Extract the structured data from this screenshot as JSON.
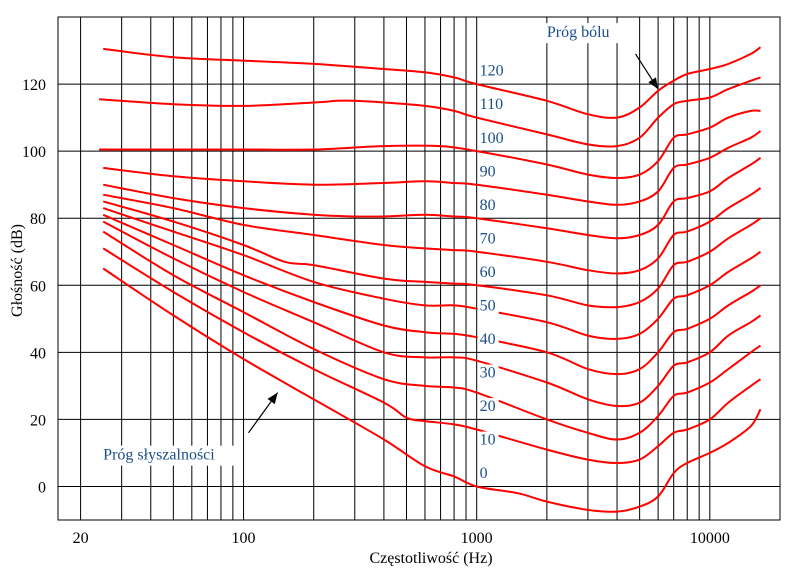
{
  "chart_data": {
    "type": "line",
    "title": "",
    "xlabel": "Częstotliwość (Hz)",
    "ylabel": "Głośność (dB)",
    "x_scale": "log",
    "xlim": [
      16,
      20000
    ],
    "ylim": [
      -10,
      140
    ],
    "x_ticks": [
      {
        "value": 20,
        "label": "20"
      },
      {
        "value": 100,
        "label": "100"
      },
      {
        "value": 1000,
        "label": "1000"
      },
      {
        "value": 10000,
        "label": "10000"
      }
    ],
    "x_grid": [
      20,
      30,
      40,
      50,
      60,
      70,
      80,
      90,
      100,
      200,
      300,
      400,
      500,
      600,
      700,
      800,
      900,
      1000,
      2000,
      3000,
      4000,
      5000,
      6000,
      7000,
      8000,
      9000,
      10000
    ],
    "y_ticks": [
      0,
      20,
      40,
      60,
      80,
      100,
      120
    ],
    "grid": true,
    "series_color": "#ff0000",
    "label_color": "#1a4f8a",
    "series": [
      {
        "name": "0",
        "label_at": [
          1000,
          2.5
        ],
        "x": [
          25,
          50,
          100,
          200,
          400,
          600,
          800,
          1000,
          1500,
          2000,
          3000,
          4000,
          5000,
          6000,
          7000,
          8000,
          10000,
          12000,
          15000,
          16500
        ],
        "y": [
          65,
          51,
          38,
          26,
          14,
          6,
          3,
          0,
          -2,
          -4.5,
          -7,
          -7.5,
          -6,
          -3,
          4,
          7,
          10,
          13,
          18,
          23
        ]
      },
      {
        "name": "10",
        "label_at": [
          1000,
          12.5
        ],
        "x": [
          25,
          50,
          100,
          200,
          400,
          500,
          600,
          800,
          1000,
          2000,
          3000,
          4000,
          5000,
          6000,
          7000,
          8000,
          10000,
          12000,
          15000,
          16500
        ],
        "y": [
          71,
          58,
          46,
          35,
          25,
          20.5,
          19.5,
          18.5,
          17,
          11,
          8,
          7,
          8,
          12,
          16,
          17,
          20,
          25,
          30,
          32
        ]
      },
      {
        "name": "20",
        "label_at": [
          1000,
          22.5
        ],
        "x": [
          25,
          50,
          100,
          200,
          400,
          600,
          800,
          1000,
          2000,
          3000,
          4000,
          5000,
          6000,
          7000,
          8000,
          10000,
          12000,
          15000,
          16500
        ],
        "y": [
          76,
          63,
          52,
          41,
          32,
          30,
          29.5,
          28,
          20,
          16,
          14,
          16,
          21,
          27,
          28,
          31,
          35,
          40,
          42
        ]
      },
      {
        "name": "30",
        "label_at": [
          1000,
          32.5
        ],
        "x": [
          25,
          50,
          100,
          200,
          400,
          600,
          800,
          1000,
          2000,
          3000,
          4000,
          5000,
          6000,
          7000,
          8000,
          10000,
          12000,
          15000,
          16500
        ],
        "y": [
          79,
          68,
          58,
          49,
          40,
          38.5,
          38.5,
          37.5,
          31,
          26,
          24,
          25,
          30,
          36,
          37,
          40,
          45,
          49,
          51
        ]
      },
      {
        "name": "40",
        "label_at": [
          1000,
          42.5
        ],
        "x": [
          25,
          50,
          100,
          200,
          400,
          600,
          800,
          1000,
          2000,
          3000,
          4000,
          5000,
          6000,
          7000,
          8000,
          10000,
          12000,
          15000,
          16500
        ],
        "y": [
          81,
          72,
          63,
          55,
          48,
          46,
          45.5,
          44.5,
          40,
          35,
          33.5,
          35,
          40,
          46,
          47,
          50,
          54,
          58,
          60
        ]
      },
      {
        "name": "50",
        "label_at": [
          1000,
          52.5
        ],
        "x": [
          25,
          50,
          100,
          200,
          400,
          600,
          800,
          1000,
          2000,
          3000,
          4000,
          5000,
          6000,
          7000,
          8000,
          10000,
          12000,
          15000,
          16500
        ],
        "y": [
          83,
          76,
          69,
          61,
          56,
          54,
          54,
          53,
          49,
          45,
          44,
          45.5,
          50,
          56,
          57,
          60,
          64,
          68,
          70
        ]
      },
      {
        "name": "60",
        "label_at": [
          1000,
          62.5
        ],
        "x": [
          25,
          50,
          100,
          150,
          200,
          400,
          600,
          800,
          1000,
          2000,
          3000,
          4000,
          5000,
          6000,
          7000,
          8000,
          10000,
          12000,
          15000,
          16500
        ],
        "y": [
          85,
          79,
          72,
          67,
          66,
          62,
          61,
          60.5,
          60,
          57,
          54,
          53.5,
          55,
          59,
          66,
          67,
          70,
          74,
          78,
          80
        ]
      },
      {
        "name": "70",
        "label_at": [
          1000,
          72.5
        ],
        "x": [
          25,
          50,
          100,
          200,
          400,
          600,
          800,
          1000,
          2000,
          3000,
          4000,
          5000,
          6000,
          7000,
          8000,
          10000,
          12000,
          15000,
          16500
        ],
        "y": [
          87,
          83,
          78,
          75,
          72,
          71,
          70.5,
          70,
          67,
          64.5,
          63.5,
          64.5,
          68,
          75,
          76,
          79,
          83,
          87,
          89
        ]
      },
      {
        "name": "80",
        "label_at": [
          1000,
          82.5
        ],
        "x": [
          25,
          50,
          100,
          200,
          300,
          400,
          600,
          800,
          1000,
          2000,
          3000,
          4000,
          5000,
          6000,
          7000,
          8000,
          10000,
          12000,
          15000,
          16500
        ],
        "y": [
          90,
          86,
          83,
          81,
          80.5,
          80.5,
          81,
          80.5,
          80,
          77,
          75,
          74,
          75,
          78,
          85,
          86,
          88,
          92,
          96,
          98
        ]
      },
      {
        "name": "90",
        "label_at": [
          1000,
          92.5
        ],
        "x": [
          25,
          50,
          100,
          200,
          400,
          600,
          800,
          1000,
          2000,
          3000,
          4000,
          5000,
          6000,
          7000,
          8000,
          10000,
          12000,
          15000,
          16500
        ],
        "y": [
          95,
          92.5,
          91,
          90,
          90.5,
          91,
          90.5,
          90,
          87,
          85,
          84,
          85,
          88,
          95,
          96,
          98,
          101,
          104,
          106
        ]
      },
      {
        "name": "100",
        "label_at": [
          1000,
          102.5
        ],
        "x": [
          24,
          50,
          100,
          200,
          400,
          700,
          1000,
          2000,
          3000,
          4000,
          5000,
          6000,
          7000,
          8000,
          10000,
          12000,
          15000,
          16500
        ],
        "y": [
          100.5,
          100.5,
          100.5,
          100.5,
          101.5,
          101.5,
          100,
          96,
          93,
          92,
          93,
          97,
          104,
          105,
          107,
          110,
          112,
          112
        ]
      },
      {
        "name": "110",
        "label_at": [
          1000,
          112.5
        ],
        "x": [
          24,
          50,
          100,
          200,
          250,
          300,
          400,
          600,
          800,
          1000,
          2000,
          3000,
          4000,
          5000,
          6000,
          7000,
          8000,
          10000,
          12000,
          15000,
          16500
        ],
        "y": [
          115.5,
          114,
          113.5,
          114.5,
          115,
          115,
          114.5,
          113.5,
          112,
          110,
          105,
          102,
          101.5,
          104,
          110,
          114,
          115,
          116,
          118.5,
          121,
          122
        ]
      },
      {
        "name": "120",
        "label_at": [
          1000,
          122.5
        ],
        "x": [
          25,
          50,
          100,
          200,
          400,
          600,
          800,
          1000,
          2000,
          3000,
          4000,
          5000,
          6000,
          7000,
          8000,
          10000,
          12000,
          15000,
          16500
        ],
        "y": [
          130.5,
          128,
          127,
          126,
          124.5,
          123.5,
          122,
          120,
          115,
          111,
          110,
          113,
          118,
          121,
          123,
          124.5,
          126,
          129,
          131
        ]
      }
    ],
    "annotations": [
      {
        "text": "Próg bólu",
        "text_at": [
          2000,
          134
        ],
        "arrow_from": [
          4800,
          129
        ],
        "arrow_to": [
          6000,
          118.5
        ]
      },
      {
        "text": "Próg słyszalności",
        "text_at": [
          25,
          8
        ],
        "arrow_from": [
          105,
          16
        ],
        "arrow_to": [
          140,
          28
        ]
      }
    ]
  }
}
